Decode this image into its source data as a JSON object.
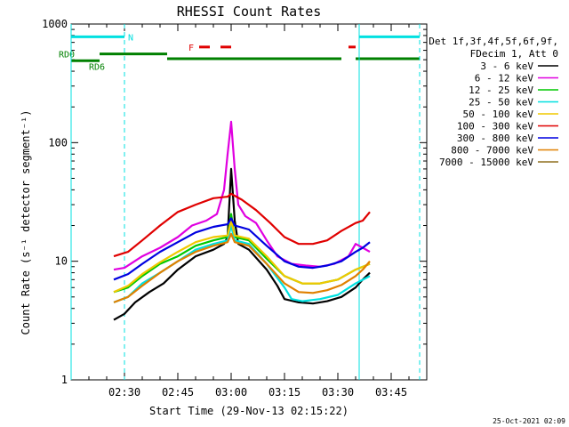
{
  "chart_data": {
    "type": "line",
    "title": "RHESSI Count Rates",
    "xlabel": "Start Time (29-Nov-13 02:15:22)",
    "ylabel": "Count Rate (s⁻¹ detector segment⁻¹)",
    "y_scale": "log",
    "ylim": [
      1,
      1000
    ],
    "xlim_minutes": [
      0,
      100
    ],
    "y_ticks": [
      "1",
      "10",
      "100",
      "1000"
    ],
    "x_ticks": [
      {
        "label": "02:30",
        "t": 15
      },
      {
        "label": "02:45",
        "t": 30
      },
      {
        "label": "03:00",
        "t": 45
      },
      {
        "label": "03:15",
        "t": 60
      },
      {
        "label": "03:30",
        "t": 75
      },
      {
        "label": "03:45",
        "t": 90
      }
    ],
    "data_start": 12,
    "data_end": 84,
    "legend_header": [
      "Det 1f,3f,4f,5f,6f,9f,",
      "FDecim 1, Att 0"
    ],
    "series": [
      {
        "name": "3 - 6 keV",
        "color": "#000000",
        "points": [
          [
            12,
            3.2
          ],
          [
            15,
            3.6
          ],
          [
            18,
            4.5
          ],
          [
            22,
            5.5
          ],
          [
            26,
            6.5
          ],
          [
            30,
            8.5
          ],
          [
            35,
            11
          ],
          [
            40,
            12.5
          ],
          [
            43,
            14
          ],
          [
            44,
            16
          ],
          [
            45,
            60
          ],
          [
            46,
            22
          ],
          [
            47,
            14
          ],
          [
            50,
            12.5
          ],
          [
            55,
            8.5
          ],
          [
            58,
            6.2
          ],
          [
            60,
            4.8
          ],
          [
            64,
            4.5
          ],
          [
            68,
            4.4
          ],
          [
            72,
            4.6
          ],
          [
            76,
            5.0
          ],
          [
            80,
            6.0
          ],
          [
            82,
            7.0
          ],
          [
            84,
            8.0
          ]
        ]
      },
      {
        "name": "6 - 12 keV",
        "color": "#e000e0",
        "points": [
          [
            12,
            8.5
          ],
          [
            15,
            8.8
          ],
          [
            20,
            11
          ],
          [
            25,
            13
          ],
          [
            30,
            16
          ],
          [
            34,
            20
          ],
          [
            38,
            22
          ],
          [
            41,
            25
          ],
          [
            43,
            40
          ],
          [
            44,
            80
          ],
          [
            45,
            150
          ],
          [
            46,
            60
          ],
          [
            47,
            30
          ],
          [
            49,
            24
          ],
          [
            52,
            21
          ],
          [
            55,
            15
          ],
          [
            58,
            11
          ],
          [
            62,
            9.5
          ],
          [
            66,
            9.2
          ],
          [
            70,
            9.0
          ],
          [
            74,
            9.5
          ],
          [
            78,
            11
          ],
          [
            80,
            14
          ],
          [
            82,
            13
          ],
          [
            84,
            12
          ]
        ]
      },
      {
        "name": "12 - 25 keV",
        "color": "#00c800",
        "points": [
          [
            12,
            5.5
          ],
          [
            16,
            6
          ],
          [
            20,
            7.5
          ],
          [
            25,
            9.5
          ],
          [
            30,
            11
          ],
          [
            35,
            13.5
          ],
          [
            40,
            15
          ],
          [
            44,
            16
          ],
          [
            45,
            25
          ],
          [
            46,
            16
          ],
          [
            50,
            15
          ],
          [
            55,
            10.5
          ],
          [
            60,
            7.5
          ],
          [
            65,
            6.5
          ],
          [
            70,
            6.5
          ],
          [
            75,
            7
          ],
          [
            80,
            8.5
          ],
          [
            84,
            9.5
          ]
        ]
      },
      {
        "name": "25 - 50 keV",
        "color": "#00e0e0",
        "points": [
          [
            12,
            4.5
          ],
          [
            16,
            5
          ],
          [
            20,
            6.5
          ],
          [
            25,
            8
          ],
          [
            30,
            10
          ],
          [
            35,
            12.5
          ],
          [
            40,
            14
          ],
          [
            44,
            15
          ],
          [
            45,
            20
          ],
          [
            46,
            15
          ],
          [
            50,
            14
          ],
          [
            55,
            9.5
          ],
          [
            60,
            6
          ],
          [
            62,
            4.8
          ],
          [
            65,
            4.6
          ],
          [
            70,
            4.8
          ],
          [
            75,
            5.2
          ],
          [
            80,
            6.5
          ],
          [
            84,
            7.5
          ]
        ]
      },
      {
        "name": "50 - 100 keV",
        "color": "#f0c800",
        "points": [
          [
            12,
            5.5
          ],
          [
            16,
            6.2
          ],
          [
            20,
            7.8
          ],
          [
            25,
            9.8
          ],
          [
            30,
            12
          ],
          [
            35,
            14.5
          ],
          [
            40,
            16
          ],
          [
            44,
            16.5
          ],
          [
            45,
            22
          ],
          [
            46,
            16.5
          ],
          [
            50,
            15.5
          ],
          [
            55,
            11
          ],
          [
            60,
            7.5
          ],
          [
            65,
            6.5
          ],
          [
            70,
            6.5
          ],
          [
            75,
            7
          ],
          [
            80,
            8.5
          ],
          [
            84,
            9.5
          ]
        ]
      },
      {
        "name": "100 - 300 keV",
        "color": "#e00000",
        "points": [
          [
            12,
            11
          ],
          [
            16,
            12
          ],
          [
            20,
            15
          ],
          [
            25,
            20
          ],
          [
            30,
            26
          ],
          [
            35,
            30
          ],
          [
            40,
            34
          ],
          [
            44,
            35
          ],
          [
            45,
            37
          ],
          [
            48,
            33
          ],
          [
            52,
            27
          ],
          [
            56,
            21
          ],
          [
            60,
            16
          ],
          [
            64,
            14
          ],
          [
            68,
            14
          ],
          [
            72,
            15
          ],
          [
            76,
            18
          ],
          [
            80,
            21
          ],
          [
            82,
            22
          ],
          [
            84,
            26
          ]
        ]
      },
      {
        "name": "300 - 800 keV",
        "color": "#0000e0",
        "points": [
          [
            12,
            7
          ],
          [
            16,
            7.8
          ],
          [
            20,
            9.5
          ],
          [
            25,
            12
          ],
          [
            30,
            14.5
          ],
          [
            35,
            17.5
          ],
          [
            40,
            19.5
          ],
          [
            44,
            20.5
          ],
          [
            45,
            23
          ],
          [
            46,
            20
          ],
          [
            50,
            18.5
          ],
          [
            55,
            13.5
          ],
          [
            60,
            10
          ],
          [
            64,
            9
          ],
          [
            68,
            8.8
          ],
          [
            72,
            9.2
          ],
          [
            76,
            10
          ],
          [
            80,
            12
          ],
          [
            82,
            13
          ],
          [
            84,
            14.5
          ]
        ]
      },
      {
        "name": "800 - 7000 keV",
        "color": "#e08000",
        "points": [
          [
            12,
            4.5
          ],
          [
            16,
            5
          ],
          [
            20,
            6.2
          ],
          [
            25,
            8
          ],
          [
            30,
            10
          ],
          [
            35,
            12
          ],
          [
            40,
            13.5
          ],
          [
            44,
            14.5
          ],
          [
            45,
            17
          ],
          [
            46,
            14.5
          ],
          [
            50,
            13.5
          ],
          [
            55,
            9.5
          ],
          [
            60,
            6.5
          ],
          [
            64,
            5.5
          ],
          [
            68,
            5.4
          ],
          [
            72,
            5.7
          ],
          [
            76,
            6.3
          ],
          [
            80,
            7.5
          ],
          [
            82,
            8.5
          ],
          [
            84,
            10
          ]
        ]
      },
      {
        "name": "7000 - 15000 keV",
        "color": "#907020",
        "points": []
      }
    ],
    "state_segments": [
      {
        "label": "N",
        "color": "#00e0e0",
        "level": 780,
        "bars": [
          [
            0,
            15
          ],
          [
            81,
            98
          ]
        ]
      },
      {
        "label": "RD0",
        "color": "#008000",
        "level": 560,
        "bars": [
          [
            8,
            27
          ]
        ]
      },
      {
        "label": "RD6",
        "color": "#008000",
        "level": 490,
        "bars": [
          [
            0,
            8
          ]
        ]
      },
      {
        "label": "",
        "color": "#008000",
        "level": 510,
        "bars": [
          [
            27,
            42
          ],
          [
            42,
            57
          ],
          [
            57,
            72
          ],
          [
            72,
            76
          ],
          [
            80,
            98
          ]
        ]
      },
      {
        "label": "F",
        "color": "#e00000",
        "level": 640,
        "bars": [
          [
            36,
            39
          ],
          [
            42,
            45
          ],
          [
            78,
            80
          ]
        ]
      }
    ],
    "vertical_lines": [
      {
        "t": 0,
        "style": "solid",
        "color": "#00e0e0"
      },
      {
        "t": 15,
        "style": "dashed",
        "color": "#00e0e0"
      },
      {
        "t": 81,
        "style": "solid",
        "color": "#00e0e0"
      },
      {
        "t": 98,
        "style": "dashed",
        "color": "#00e0e0"
      }
    ]
  },
  "footer": {
    "date_stamp": "25-Oct-2021 02:09"
  }
}
